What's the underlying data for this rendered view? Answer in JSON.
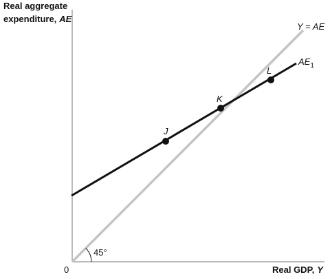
{
  "y_axis": {
    "label_line1": "Real aggregate",
    "label_line2": "expenditure,",
    "label_var": "AE"
  },
  "x_axis": {
    "label": "Real GDP,",
    "label_var": "Y",
    "origin": "0"
  },
  "lines": [
    {
      "label": "Y = AE"
    },
    {
      "label": "AE",
      "subscript": "1"
    }
  ],
  "angle": "45°",
  "points": [
    "J",
    "K",
    "L"
  ]
}
